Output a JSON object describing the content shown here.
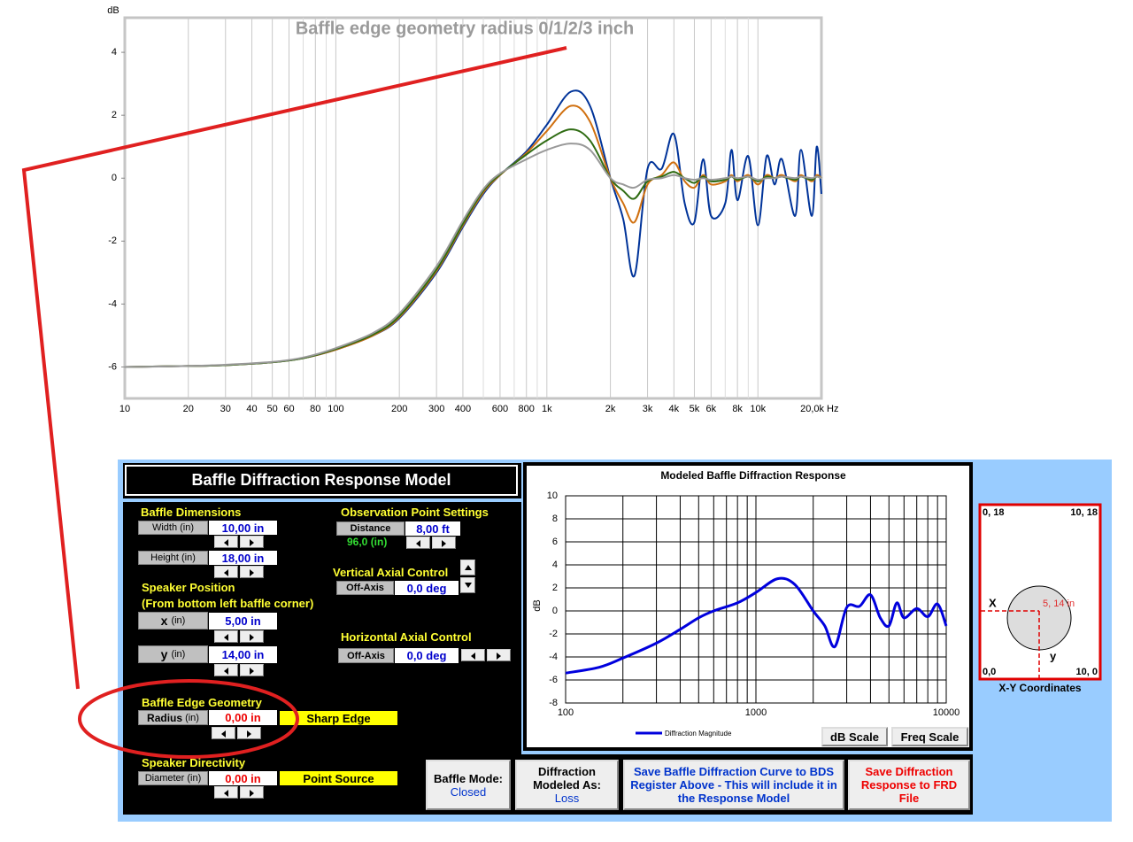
{
  "chart_data": [
    {
      "type": "line",
      "title": "Baffle edge geometry radius 0/1/2/3 inch",
      "y_label": "dB",
      "x_unit": "Hz",
      "xscale": "log",
      "xlim": [
        10,
        20000
      ],
      "ylim": [
        -7,
        5.1
      ],
      "grid": "x",
      "xticks": [
        10,
        20,
        30,
        40,
        50,
        60,
        80,
        100,
        200,
        300,
        400,
        600,
        800,
        {
          "value": 1000,
          "label": "1k"
        },
        {
          "value": 2000,
          "label": "2k"
        },
        {
          "value": 3000,
          "label": "3k"
        },
        {
          "value": 4000,
          "label": "4k"
        },
        {
          "value": 5000,
          "label": "5k"
        },
        {
          "value": 6000,
          "label": "6k"
        },
        {
          "value": 8000,
          "label": "8k"
        },
        {
          "value": 10000,
          "label": "10k"
        },
        {
          "value": 20000,
          "label": "20,0k"
        }
      ],
      "x_minor_ticks": [
        70,
        90,
        500,
        700,
        900,
        7000,
        9000
      ],
      "yticks": [
        -6,
        -4,
        -2,
        0,
        2,
        4
      ],
      "x": [
        10,
        20,
        30,
        50,
        70,
        100,
        150,
        200,
        300,
        400,
        500,
        600,
        800,
        1000,
        1300,
        1600,
        2000,
        2300,
        2600,
        3000,
        3500,
        4000,
        4500,
        5000,
        5500,
        6000,
        7000,
        7500,
        8000,
        9000,
        10000,
        11000,
        12000,
        13000,
        15000,
        16000,
        18000,
        19000,
        20000
      ],
      "series": [
        {
          "color": "#003399",
          "values": [
            -6.0,
            -5.97,
            -5.94,
            -5.85,
            -5.72,
            -5.45,
            -5.0,
            -4.45,
            -3.0,
            -1.55,
            -0.5,
            0.1,
            0.85,
            1.7,
            2.75,
            2.3,
            0.0,
            -1.3,
            -3.1,
            0.3,
            0.3,
            1.4,
            -0.8,
            -1.4,
            0.6,
            -1.2,
            -0.8,
            0.9,
            -0.7,
            0.7,
            -1.5,
            0.7,
            -0.2,
            0.6,
            -1.2,
            0.9,
            -1.2,
            1.0,
            -0.5
          ]
        },
        {
          "color": "#d07010",
          "values": [
            -6.0,
            -5.97,
            -5.94,
            -5.85,
            -5.72,
            -5.45,
            -5.0,
            -4.42,
            -2.95,
            -1.5,
            -0.45,
            0.1,
            0.8,
            1.5,
            2.3,
            1.8,
            0.0,
            -0.8,
            -1.4,
            -0.2,
            0.1,
            0.5,
            -0.1,
            -0.3,
            0.1,
            -0.2,
            -0.1,
            0.1,
            -0.1,
            0.1,
            -0.2,
            0.1,
            0.0,
            0.1,
            -0.1,
            0.1,
            -0.1,
            0.1,
            0.0
          ]
        },
        {
          "color": "#2e6b12",
          "values": [
            -6.0,
            -5.97,
            -5.94,
            -5.85,
            -5.72,
            -5.43,
            -4.97,
            -4.38,
            -2.9,
            -1.45,
            -0.4,
            0.12,
            0.75,
            1.2,
            1.55,
            1.2,
            0.0,
            -0.4,
            -0.65,
            -0.1,
            0.05,
            0.2,
            0.0,
            -0.15,
            0.05,
            -0.1,
            -0.05,
            0.05,
            -0.05,
            0.05,
            -0.1,
            0.05,
            0.0,
            0.05,
            -0.05,
            0.05,
            -0.05,
            0.05,
            0.0
          ]
        },
        {
          "color": "#999999",
          "values": [
            -6.0,
            -5.97,
            -5.93,
            -5.84,
            -5.7,
            -5.4,
            -4.92,
            -4.3,
            -2.8,
            -1.35,
            -0.35,
            0.15,
            0.6,
            0.9,
            1.1,
            0.9,
            0.0,
            -0.2,
            -0.3,
            -0.05,
            0.0,
            0.1,
            0.0,
            -0.05,
            0.0,
            -0.05,
            0.0,
            0.05,
            0.0,
            0.05,
            -0.05,
            0.0,
            0.0,
            0.05,
            0.0,
            0.05,
            0.0,
            0.05,
            0.0
          ]
        }
      ]
    },
    {
      "type": "line",
      "title": "Modeled Baffle Diffraction Response",
      "y_label": "dB",
      "xscale": "log",
      "xlim": [
        100,
        10000
      ],
      "ylim": [
        -8,
        10
      ],
      "grid": "xy",
      "xticks": [
        100,
        1000,
        10000
      ],
      "x_minor_ticks": [
        200,
        300,
        400,
        500,
        600,
        700,
        800,
        900,
        2000,
        3000,
        4000,
        5000,
        6000,
        7000,
        8000,
        9000
      ],
      "yticks": [
        -8,
        -6,
        -4,
        -2,
        0,
        2,
        4,
        6,
        8,
        10
      ],
      "x": [
        100,
        150,
        200,
        300,
        400,
        500,
        600,
        800,
        1000,
        1300,
        1600,
        2000,
        2300,
        2600,
        3000,
        3500,
        4000,
        4500,
        5000,
        5500,
        6000,
        7000,
        8000,
        9000,
        10000
      ],
      "series": [
        {
          "name": "Diffraction Magnitude",
          "color": "#0000dd",
          "values": [
            -5.4,
            -4.9,
            -4.1,
            -2.8,
            -1.6,
            -0.6,
            0.0,
            0.7,
            1.6,
            2.8,
            2.3,
            0.0,
            -1.3,
            -3.1,
            0.3,
            0.4,
            1.4,
            -0.6,
            -1.3,
            0.7,
            -0.6,
            0.2,
            -0.5,
            0.6,
            -1.3
          ]
        }
      ]
    }
  ],
  "panel": {
    "title": "Baffle Diffraction Response Model",
    "baffle_dimensions": {
      "heading": "Baffle Dimensions",
      "width_label": "Width (in)",
      "width_value": "10,00 in",
      "height_label": "Height (in)",
      "height_value": "18,00 in"
    },
    "speaker_position": {
      "heading": "Speaker Position",
      "subheading": "(From bottom left baffle corner)",
      "x_label": "x",
      "x_unit": "(in)",
      "x_value": "5,00 in",
      "y_label": "y",
      "y_unit": "(in)",
      "y_value": "14,00 in"
    },
    "edge_geometry": {
      "heading": "Baffle Edge Geometry",
      "radius_label": "Radius",
      "radius_unit": "(in)",
      "radius_value": "0,00 in",
      "edge_type": "Sharp Edge"
    },
    "directivity": {
      "heading": "Speaker Directivity",
      "diameter_label": "Diameter (in)",
      "diameter_value": "0,00 in",
      "source_type": "Point Source"
    },
    "observation": {
      "heading": "Observation Point Settings",
      "distance_label": "Distance",
      "distance_value": "8,00 ft",
      "distance_inches": "96,0 (in)"
    },
    "vertical": {
      "heading": "Vertical Axial Control",
      "off_axis_label": "Off-Axis",
      "off_axis_value": "0,0 deg"
    },
    "horizontal": {
      "heading": "Horizontal Axial Control",
      "off_axis_label": "Off-Axis",
      "off_axis_value": "0,0 deg"
    },
    "scale_buttons": [
      "dB Scale",
      "Freq Scale"
    ],
    "buttons": [
      {
        "label": "Baffle Mode:",
        "value": "Closed"
      },
      {
        "label": "Diffraction Modeled As:",
        "value": "Loss"
      },
      {
        "label": "Save Baffle Diffraction Curve to BDS Register Above - This will include it in the Response  Model"
      },
      {
        "label": "Save Diffraction Response to FRD File"
      }
    ]
  },
  "xy_diagram": {
    "title": "X-Y Coordinates",
    "top_left": "0, 18",
    "top_right": "10, 18",
    "bottom_left": "0,0",
    "bottom_right": "10, 0",
    "x_marker": "X",
    "y_marker": "y",
    "position": "5, 14 in"
  }
}
